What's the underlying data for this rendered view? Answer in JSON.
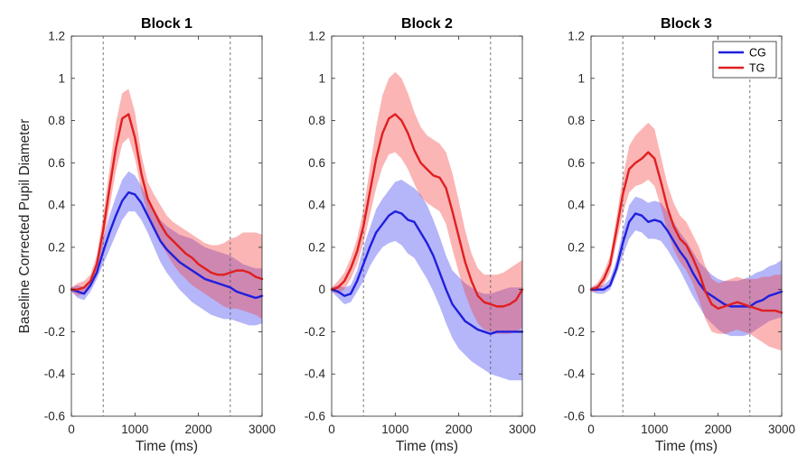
{
  "chart_data": [
    {
      "type": "line",
      "title": "Block 1",
      "xlabel": "Time (ms)",
      "ylabel": "Baseline Corrected Pupil Diameter",
      "xlim": [
        0,
        3000
      ],
      "ylim": [
        -0.6,
        1.2
      ],
      "xticks": [
        0,
        1000,
        2000,
        3000
      ],
      "yticks": [
        -0.6,
        -0.4,
        -0.2,
        0,
        0.2,
        0.4,
        0.6,
        0.8,
        1,
        1.2
      ],
      "vlines": [
        500,
        2500
      ],
      "series": [
        {
          "name": "CG",
          "color": "#1f1fdd",
          "x": [
            0,
            100,
            200,
            300,
            400,
            500,
            600,
            700,
            800,
            900,
            1000,
            1100,
            1200,
            1300,
            1400,
            1500,
            1600,
            1700,
            1800,
            1900,
            2000,
            2100,
            2200,
            2300,
            2400,
            2500,
            2600,
            2700,
            2800,
            2900,
            3000
          ],
          "y": [
            0,
            -0.01,
            -0.02,
            0.02,
            0.08,
            0.18,
            0.27,
            0.35,
            0.42,
            0.46,
            0.45,
            0.41,
            0.35,
            0.29,
            0.23,
            0.19,
            0.16,
            0.13,
            0.11,
            0.09,
            0.07,
            0.05,
            0.04,
            0.03,
            0.02,
            0.01,
            -0.01,
            -0.02,
            -0.03,
            -0.04,
            -0.03
          ],
          "lower": [
            -0.01,
            -0.04,
            -0.05,
            -0.01,
            0.05,
            0.12,
            0.19,
            0.26,
            0.33,
            0.37,
            0.37,
            0.33,
            0.27,
            0.2,
            0.13,
            0.08,
            0.04,
            0.0,
            -0.03,
            -0.06,
            -0.08,
            -0.1,
            -0.12,
            -0.13,
            -0.14,
            -0.14,
            -0.15,
            -0.16,
            -0.17,
            -0.17,
            -0.16
          ],
          "upper": [
            0.01,
            0.02,
            0.01,
            0.05,
            0.12,
            0.24,
            0.35,
            0.44,
            0.52,
            0.56,
            0.54,
            0.49,
            0.43,
            0.38,
            0.33,
            0.3,
            0.28,
            0.26,
            0.25,
            0.24,
            0.22,
            0.2,
            0.19,
            0.18,
            0.17,
            0.16,
            0.14,
            0.12,
            0.11,
            0.1,
            0.1
          ]
        },
        {
          "name": "TG",
          "color": "#e01f1f",
          "x": [
            0,
            100,
            200,
            300,
            400,
            500,
            600,
            700,
            800,
            900,
            1000,
            1100,
            1200,
            1300,
            1400,
            1500,
            1600,
            1700,
            1800,
            1900,
            2000,
            2100,
            2200,
            2300,
            2400,
            2500,
            2600,
            2700,
            2800,
            2900,
            3000
          ],
          "y": [
            0,
            0.0,
            0.01,
            0.04,
            0.12,
            0.28,
            0.48,
            0.67,
            0.81,
            0.83,
            0.72,
            0.55,
            0.43,
            0.37,
            0.31,
            0.26,
            0.23,
            0.2,
            0.17,
            0.15,
            0.12,
            0.1,
            0.08,
            0.07,
            0.07,
            0.08,
            0.09,
            0.09,
            0.08,
            0.06,
            0.05
          ],
          "lower": [
            -0.01,
            -0.03,
            -0.02,
            0.02,
            0.09,
            0.21,
            0.39,
            0.56,
            0.69,
            0.72,
            0.62,
            0.47,
            0.36,
            0.29,
            0.22,
            0.17,
            0.12,
            0.08,
            0.05,
            0.02,
            0.0,
            -0.02,
            -0.04,
            -0.06,
            -0.08,
            -0.09,
            -0.09,
            -0.1,
            -0.11,
            -0.12,
            -0.14
          ],
          "upper": [
            0.01,
            0.03,
            0.04,
            0.07,
            0.16,
            0.35,
            0.57,
            0.79,
            0.93,
            0.95,
            0.84,
            0.64,
            0.51,
            0.45,
            0.4,
            0.35,
            0.32,
            0.3,
            0.28,
            0.26,
            0.24,
            0.22,
            0.21,
            0.21,
            0.22,
            0.24,
            0.25,
            0.27,
            0.27,
            0.27,
            0.26
          ]
        }
      ]
    },
    {
      "type": "line",
      "title": "Block 2",
      "xlabel": "Time (ms)",
      "ylabel": "",
      "xlim": [
        0,
        3000
      ],
      "ylim": [
        -0.6,
        1.2
      ],
      "xticks": [
        0,
        1000,
        2000,
        3000
      ],
      "yticks": [
        -0.6,
        -0.4,
        -0.2,
        0,
        0.2,
        0.4,
        0.6,
        0.8,
        1,
        1.2
      ],
      "vlines": [
        500,
        2500
      ],
      "series": [
        {
          "name": "CG",
          "color": "#1f1fdd",
          "x": [
            0,
            100,
            200,
            300,
            400,
            500,
            600,
            700,
            800,
            900,
            1000,
            1100,
            1200,
            1300,
            1400,
            1500,
            1600,
            1700,
            1800,
            1900,
            2000,
            2100,
            2200,
            2300,
            2400,
            2500,
            2600,
            2700,
            2800,
            2900,
            3000
          ],
          "y": [
            0,
            -0.01,
            -0.03,
            -0.02,
            0.04,
            0.12,
            0.2,
            0.27,
            0.31,
            0.35,
            0.37,
            0.36,
            0.33,
            0.32,
            0.27,
            0.22,
            0.16,
            0.08,
            0.0,
            -0.07,
            -0.11,
            -0.15,
            -0.17,
            -0.19,
            -0.2,
            -0.21,
            -0.2,
            -0.2,
            -0.2,
            -0.2,
            -0.2
          ],
          "lower": [
            -0.01,
            -0.04,
            -0.07,
            -0.06,
            -0.01,
            0.04,
            0.11,
            0.16,
            0.2,
            0.22,
            0.23,
            0.21,
            0.17,
            0.15,
            0.1,
            0.05,
            -0.01,
            -0.08,
            -0.16,
            -0.23,
            -0.28,
            -0.31,
            -0.34,
            -0.36,
            -0.38,
            -0.4,
            -0.41,
            -0.42,
            -0.43,
            -0.43,
            -0.43
          ],
          "upper": [
            0.01,
            0.02,
            0.01,
            0.02,
            0.09,
            0.2,
            0.29,
            0.38,
            0.43,
            0.47,
            0.51,
            0.52,
            0.5,
            0.48,
            0.45,
            0.4,
            0.33,
            0.25,
            0.16,
            0.09,
            0.06,
            0.03,
            0.01,
            -0.01,
            -0.02,
            -0.02,
            -0.01,
            0.0,
            0.01,
            0.01,
            0.01
          ]
        },
        {
          "name": "TG",
          "color": "#e01f1f",
          "x": [
            0,
            100,
            200,
            300,
            400,
            500,
            600,
            700,
            800,
            900,
            1000,
            1100,
            1200,
            1300,
            1400,
            1500,
            1600,
            1700,
            1800,
            1900,
            2000,
            2100,
            2200,
            2300,
            2400,
            2500,
            2600,
            2700,
            2800,
            2900,
            3000
          ],
          "y": [
            0,
            0.01,
            0.04,
            0.1,
            0.18,
            0.3,
            0.46,
            0.62,
            0.74,
            0.81,
            0.83,
            0.8,
            0.74,
            0.66,
            0.6,
            0.57,
            0.54,
            0.53,
            0.48,
            0.37,
            0.25,
            0.13,
            0.04,
            -0.03,
            -0.06,
            -0.07,
            -0.08,
            -0.08,
            -0.07,
            -0.05,
            0.0
          ],
          "lower": [
            -0.01,
            -0.02,
            0.0,
            0.05,
            0.12,
            0.22,
            0.35,
            0.48,
            0.58,
            0.64,
            0.65,
            0.62,
            0.57,
            0.5,
            0.44,
            0.41,
            0.39,
            0.37,
            0.31,
            0.19,
            0.08,
            -0.02,
            -0.1,
            -0.16,
            -0.19,
            -0.2,
            -0.21,
            -0.21,
            -0.21,
            -0.2,
            -0.18
          ],
          "upper": [
            0.01,
            0.04,
            0.08,
            0.15,
            0.24,
            0.38,
            0.57,
            0.77,
            0.92,
            1.0,
            1.03,
            1.0,
            0.93,
            0.84,
            0.77,
            0.73,
            0.71,
            0.69,
            0.65,
            0.55,
            0.42,
            0.28,
            0.17,
            0.1,
            0.07,
            0.07,
            0.07,
            0.08,
            0.1,
            0.12,
            0.14
          ]
        }
      ]
    },
    {
      "type": "line",
      "title": "Block 3",
      "xlabel": "Time (ms)",
      "ylabel": "",
      "xlim": [
        0,
        3000
      ],
      "ylim": [
        -0.6,
        1.2
      ],
      "xticks": [
        0,
        1000,
        2000,
        3000
      ],
      "yticks": [
        -0.6,
        -0.4,
        -0.2,
        0,
        0.2,
        0.4,
        0.6,
        0.8,
        1,
        1.2
      ],
      "vlines": [
        500,
        2500
      ],
      "legend": {
        "placement": "top-right",
        "entries": [
          "CG",
          "TG"
        ]
      },
      "series": [
        {
          "name": "CG",
          "color": "#1f1fdd",
          "x": [
            0,
            100,
            200,
            300,
            400,
            500,
            600,
            700,
            800,
            900,
            1000,
            1100,
            1200,
            1300,
            1400,
            1500,
            1600,
            1700,
            1800,
            1900,
            2000,
            2100,
            2200,
            2300,
            2400,
            2500,
            2600,
            2700,
            2800,
            2900,
            3000
          ],
          "y": [
            0,
            0.0,
            0.0,
            0.02,
            0.1,
            0.22,
            0.32,
            0.36,
            0.35,
            0.32,
            0.33,
            0.32,
            0.28,
            0.23,
            0.18,
            0.14,
            0.08,
            0.03,
            -0.01,
            -0.03,
            -0.05,
            -0.07,
            -0.08,
            -0.08,
            -0.08,
            -0.08,
            -0.06,
            -0.05,
            -0.03,
            -0.02,
            -0.01
          ],
          "lower": [
            -0.01,
            -0.02,
            -0.02,
            0.0,
            0.07,
            0.16,
            0.24,
            0.28,
            0.27,
            0.24,
            0.24,
            0.23,
            0.19,
            0.14,
            0.09,
            0.03,
            -0.03,
            -0.08,
            -0.13,
            -0.16,
            -0.19,
            -0.21,
            -0.22,
            -0.22,
            -0.22,
            -0.21,
            -0.19,
            -0.17,
            -0.15,
            -0.14,
            -0.13
          ],
          "upper": [
            0.01,
            0.02,
            0.02,
            0.05,
            0.14,
            0.28,
            0.4,
            0.44,
            0.43,
            0.41,
            0.42,
            0.41,
            0.37,
            0.32,
            0.27,
            0.23,
            0.18,
            0.13,
            0.1,
            0.07,
            0.05,
            0.04,
            0.04,
            0.04,
            0.05,
            0.06,
            0.08,
            0.09,
            0.11,
            0.12,
            0.14
          ]
        },
        {
          "name": "TG",
          "color": "#e01f1f",
          "x": [
            0,
            100,
            200,
            300,
            400,
            500,
            600,
            700,
            800,
            900,
            1000,
            1100,
            1200,
            1300,
            1400,
            1500,
            1600,
            1700,
            1800,
            1900,
            2000,
            2100,
            2200,
            2300,
            2400,
            2500,
            2600,
            2700,
            2800,
            2900,
            3000
          ],
          "y": [
            0,
            0.01,
            0.05,
            0.12,
            0.28,
            0.45,
            0.57,
            0.6,
            0.62,
            0.65,
            0.62,
            0.51,
            0.39,
            0.3,
            0.24,
            0.21,
            0.15,
            0.08,
            -0.01,
            -0.07,
            -0.09,
            -0.08,
            -0.07,
            -0.06,
            -0.07,
            -0.08,
            -0.09,
            -0.1,
            -0.1,
            -0.1,
            -0.11
          ],
          "lower": [
            -0.01,
            -0.01,
            0.02,
            0.08,
            0.22,
            0.36,
            0.46,
            0.49,
            0.5,
            0.52,
            0.49,
            0.39,
            0.28,
            0.19,
            0.13,
            0.09,
            0.03,
            -0.05,
            -0.14,
            -0.2,
            -0.21,
            -0.21,
            -0.2,
            -0.19,
            -0.2,
            -0.21,
            -0.23,
            -0.25,
            -0.27,
            -0.28,
            -0.29
          ],
          "upper": [
            0.01,
            0.03,
            0.08,
            0.16,
            0.34,
            0.53,
            0.68,
            0.73,
            0.76,
            0.79,
            0.76,
            0.63,
            0.5,
            0.41,
            0.35,
            0.32,
            0.26,
            0.2,
            0.11,
            0.05,
            0.03,
            0.04,
            0.05,
            0.06,
            0.05,
            0.05,
            0.05,
            0.06,
            0.06,
            0.07,
            0.07
          ]
        }
      ]
    }
  ]
}
